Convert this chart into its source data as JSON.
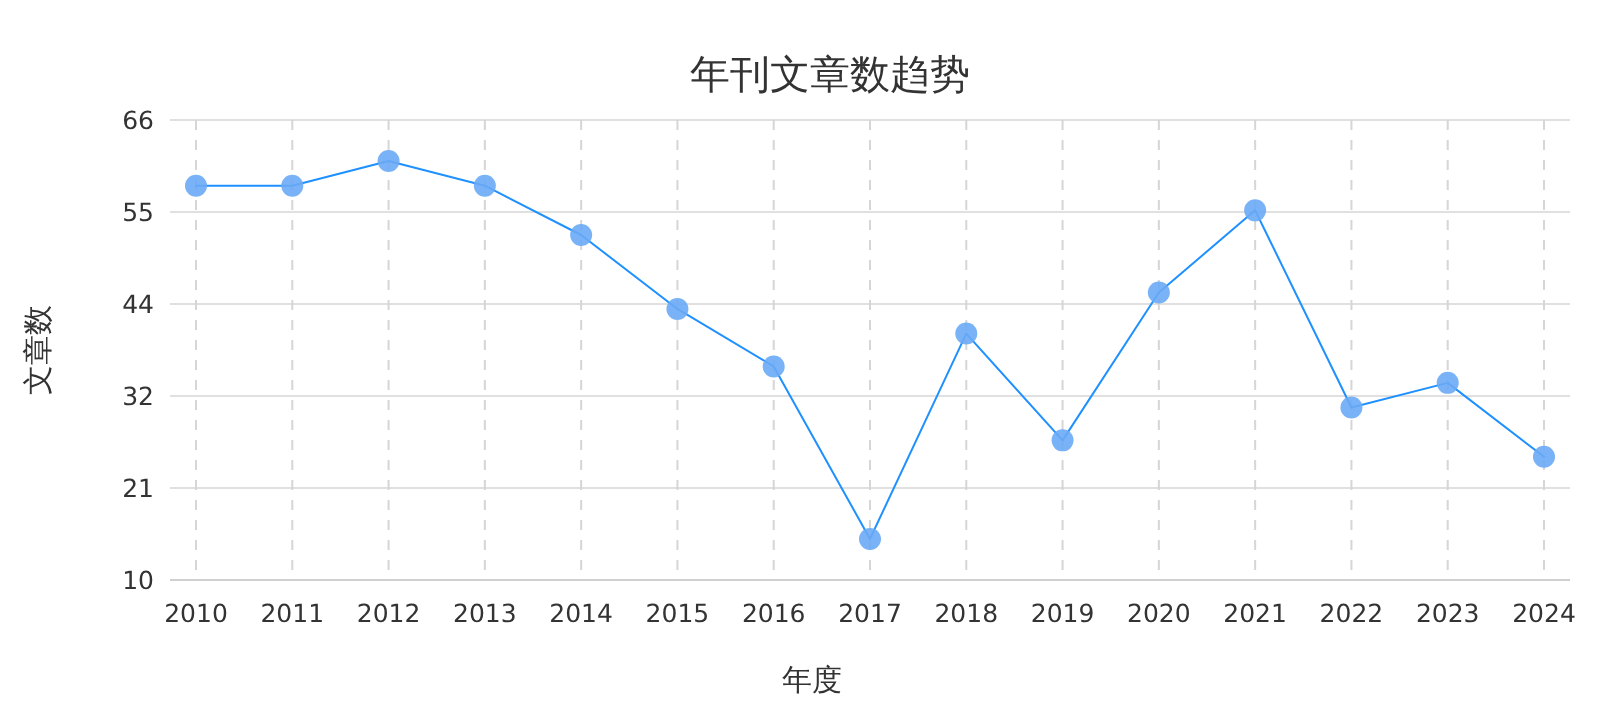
{
  "chart_data": {
    "type": "line",
    "title": "年刊文章数趋势",
    "xlabel": "年度",
    "ylabel": "文章数",
    "categories": [
      "2010",
      "2011",
      "2012",
      "2013",
      "2014",
      "2015",
      "2016",
      "2017",
      "2018",
      "2019",
      "2020",
      "2021",
      "2022",
      "2023",
      "2024"
    ],
    "series": [
      {
        "color": "#1e90ff",
        "values": [
          58,
          58,
          61,
          58,
          52,
          43,
          36,
          15,
          40,
          27,
          45,
          55,
          31,
          34,
          25
        ]
      }
    ],
    "ylim": [
      10,
      66
    ],
    "yticks": [
      10,
      {
        "value": 21.2,
        "label": "21"
      },
      {
        "value": 32.4,
        "label": "32"
      },
      {
        "value": 43.6,
        "label": "44"
      },
      {
        "value": 54.8,
        "label": "55"
      },
      66
    ],
    "grid": true,
    "marker": "circle",
    "line_style": "solid"
  }
}
